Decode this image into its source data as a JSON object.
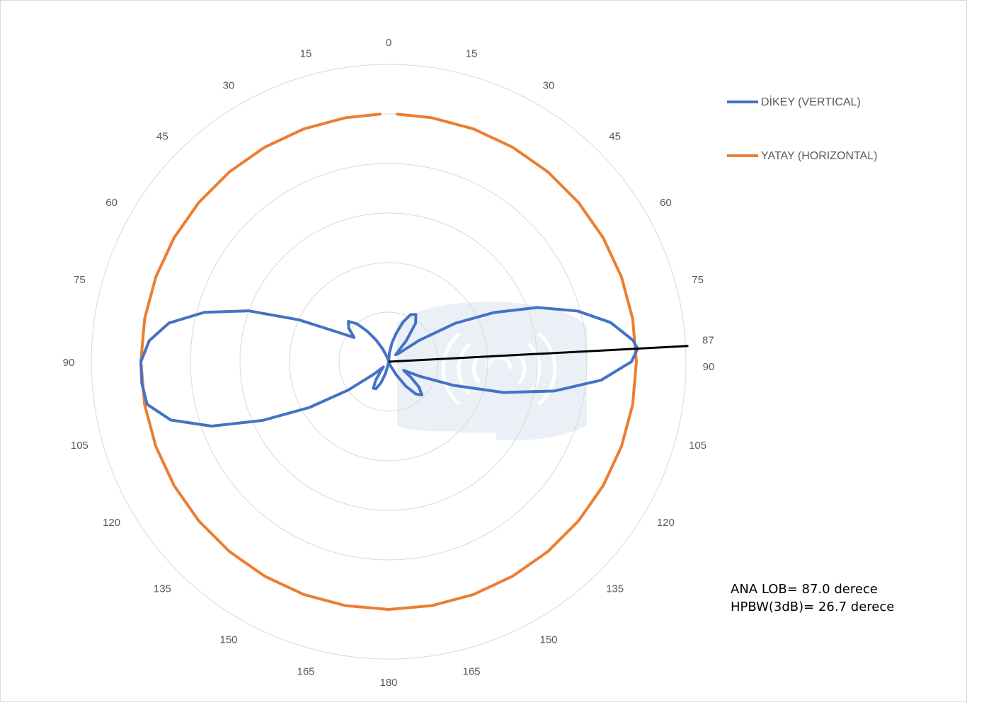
{
  "chart_data": {
    "type": "polar",
    "angle_unit": "degrees",
    "angle_ticks": [
      {
        "angle": 0,
        "label": "0"
      },
      {
        "angle": 15,
        "label": "15"
      },
      {
        "angle": 30,
        "label": "30"
      },
      {
        "angle": 45,
        "label": "45"
      },
      {
        "angle": 60,
        "label": "60"
      },
      {
        "angle": 75,
        "label": "75"
      },
      {
        "angle": 90,
        "label": "90"
      },
      {
        "angle": 105,
        "label": "105"
      },
      {
        "angle": 120,
        "label": "120"
      },
      {
        "angle": 135,
        "label": "135"
      },
      {
        "angle": 150,
        "label": "150"
      },
      {
        "angle": 165,
        "label": "165"
      },
      {
        "angle": 180,
        "label": "180"
      },
      {
        "angle": 195,
        "label": "165"
      },
      {
        "angle": 210,
        "label": "150"
      },
      {
        "angle": 225,
        "label": "135"
      },
      {
        "angle": 240,
        "label": "120"
      },
      {
        "angle": 255,
        "label": "105"
      },
      {
        "angle": 270,
        "label": "90"
      },
      {
        "angle": 285,
        "label": "75"
      },
      {
        "angle": 300,
        "label": "60"
      },
      {
        "angle": 315,
        "label": "45"
      },
      {
        "angle": 330,
        "label": "30"
      },
      {
        "angle": 345,
        "label": "15"
      }
    ],
    "extra_tick": {
      "angle": 87,
      "label": "87"
    },
    "radial_rings": 6,
    "radial_range": [
      0,
      6
    ],
    "grid": true,
    "legend_position": "top-right",
    "series": [
      {
        "name": "DİKEY (VERTICAL)",
        "color": "#4472C4",
        "angles": [
          0,
          5,
          10,
          15,
          20,
          25,
          30,
          35,
          40,
          45,
          50,
          55,
          60,
          65,
          70,
          75,
          80,
          85,
          87,
          90,
          95,
          100,
          105,
          110,
          115,
          120,
          125,
          130,
          135,
          140,
          145,
          150,
          155,
          160,
          165,
          170,
          175,
          180,
          185,
          190,
          195,
          200,
          205,
          210,
          215,
          220,
          225,
          230,
          235,
          240,
          245,
          250,
          255,
          260,
          265,
          270,
          275,
          280,
          285,
          290,
          295,
          300,
          305,
          310,
          315,
          320,
          325,
          330,
          335,
          340,
          345,
          350,
          355,
          360
        ],
        "values": [
          0.0,
          0.18,
          0.38,
          0.6,
          0.85,
          1.05,
          1.1,
          0.95,
          0.55,
          0.2,
          0.25,
          0.75,
          1.55,
          2.35,
          3.2,
          3.95,
          4.55,
          4.95,
          5.03,
          4.9,
          4.3,
          3.4,
          2.4,
          1.4,
          0.7,
          0.35,
          0.55,
          0.8,
          0.95,
          0.85,
          0.6,
          0.3,
          0.1,
          0.02,
          0.0,
          0.0,
          0.0,
          0.0,
          0.0,
          0.05,
          0.25,
          0.45,
          0.6,
          0.62,
          0.45,
          0.25,
          0.15,
          0.4,
          1.0,
          1.85,
          2.8,
          3.8,
          4.55,
          4.95,
          5.0,
          5.0,
          4.85,
          4.5,
          3.85,
          3.0,
          2.0,
          1.2,
          0.85,
          1.05,
          1.15,
          1.0,
          0.75,
          0.5,
          0.28,
          0.12,
          0.04,
          0.0,
          0.0,
          0.0
        ]
      },
      {
        "name": "YATAY (HORIZONTAL)",
        "color": "#ED7D31",
        "angles": [
          2,
          10,
          20,
          30,
          40,
          50,
          60,
          70,
          80,
          90,
          100,
          110,
          120,
          130,
          140,
          150,
          160,
          170,
          180,
          190,
          200,
          210,
          220,
          230,
          240,
          250,
          260,
          270,
          280,
          290,
          300,
          310,
          320,
          330,
          340,
          350,
          358
        ],
        "values": [
          5.0,
          5.0,
          5.0,
          5.0,
          5.0,
          5.0,
          5.0,
          5.0,
          5.0,
          5.0,
          5.0,
          5.0,
          5.0,
          5.0,
          5.0,
          5.0,
          5.0,
          5.0,
          5.0,
          5.0,
          5.0,
          5.0,
          5.0,
          5.0,
          5.0,
          5.0,
          5.0,
          5.0,
          5.0,
          5.0,
          5.0,
          5.0,
          5.0,
          5.0,
          5.0,
          5.0,
          5.0
        ]
      }
    ],
    "main_lobe_marker": {
      "angle": 87,
      "color": "#000000"
    }
  },
  "legend": {
    "vertical_label": "DİKEY (VERTICAL)",
    "horizontal_label": "YATAY (HORIZONTAL)"
  },
  "annotation": {
    "main_lobe": "ANA LOB= 87.0 derece",
    "hpbw": "HPBW(3dB)= 26.7 derece"
  },
  "colors": {
    "vertical": "#4472C4",
    "horizontal": "#ED7D31",
    "grid": "#d9d9d9",
    "label": "#595959",
    "marker": "#000000"
  }
}
